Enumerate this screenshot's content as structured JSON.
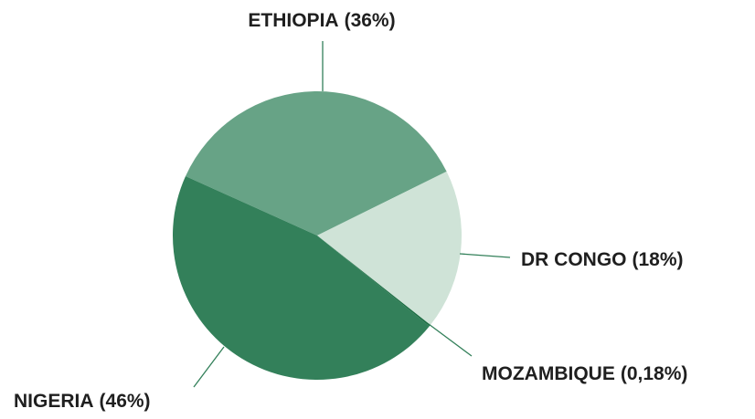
{
  "chart_data": {
    "type": "pie",
    "categories": [
      "ETHIOPIA",
      "DR CONGO",
      "MOZAMBIQUE",
      "NIGERIA"
    ],
    "values": [
      36,
      18,
      0.18,
      46
    ],
    "value_labels": [
      "(36%)",
      "(18%)",
      "(0,18%)",
      "(46%)"
    ],
    "colors": [
      "#67a386",
      "#cfe3d7",
      "#1a6b41",
      "#33805a"
    ]
  }
}
